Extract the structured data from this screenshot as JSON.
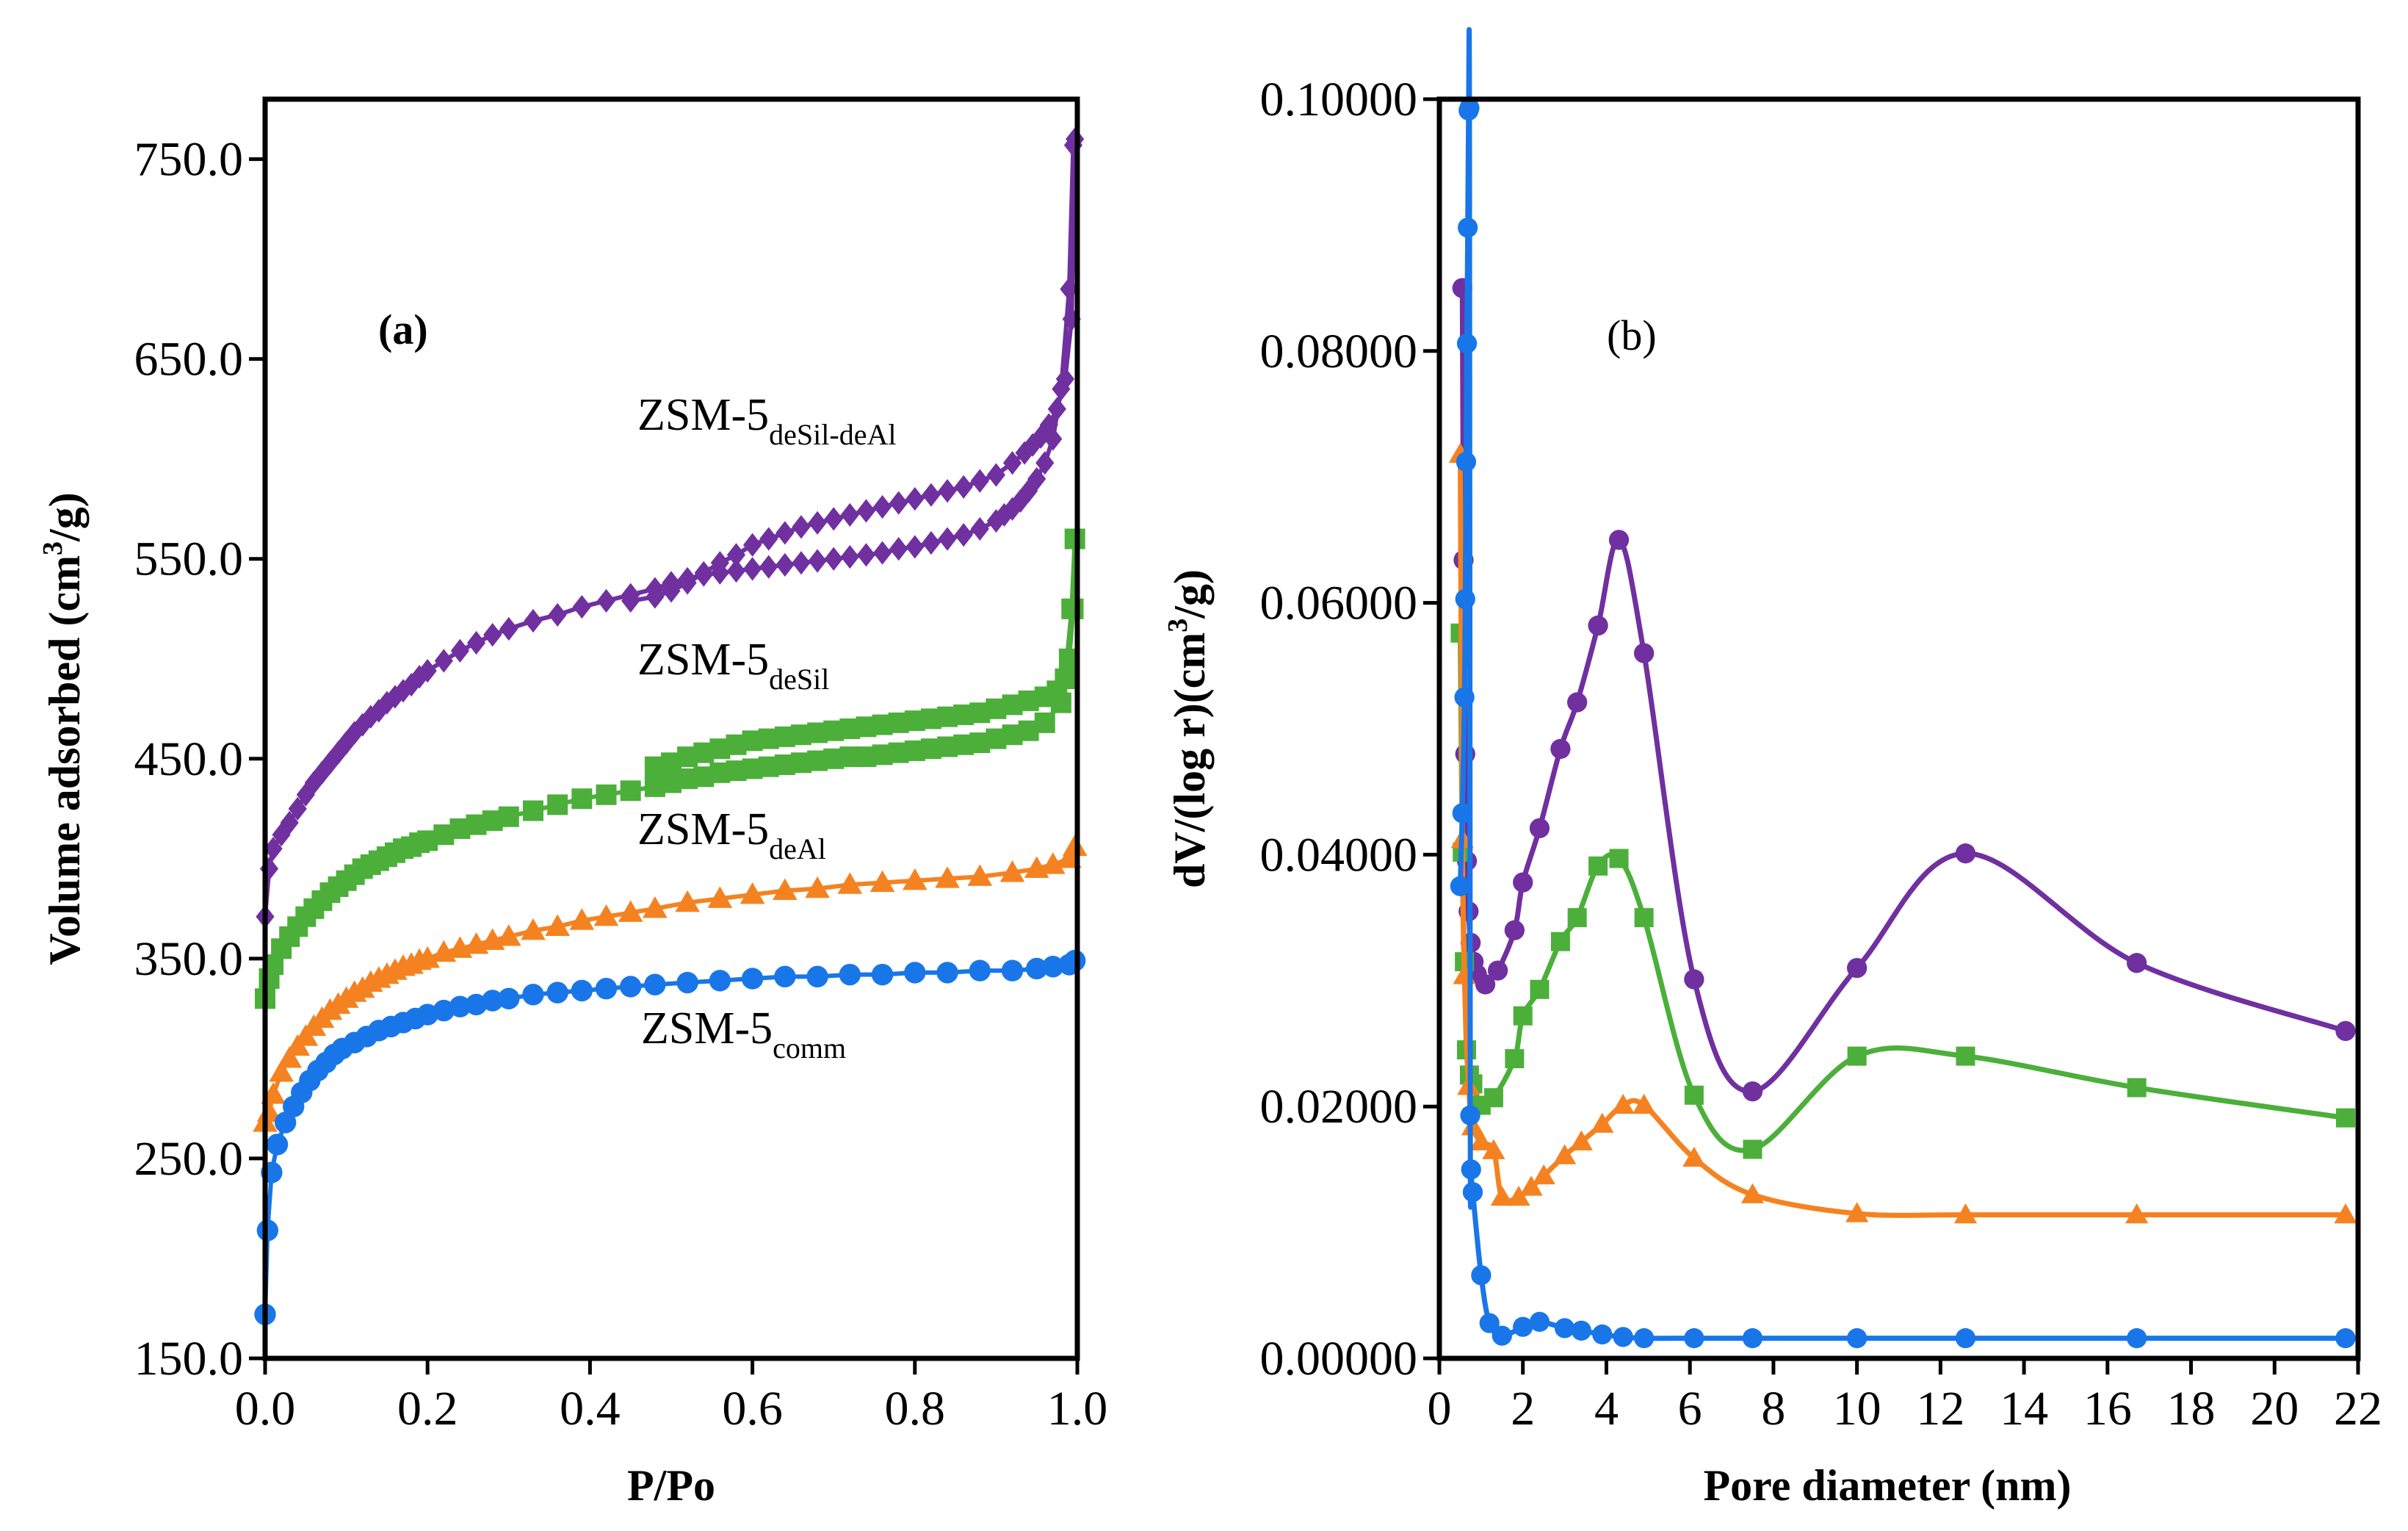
{
  "chart_data": [
    {
      "panel": "a",
      "type": "scatter",
      "title": "",
      "panel_label": "(a)",
      "xlabel": "P/Po",
      "ylabel_main": "Volume adsorbed (cm",
      "ylabel_sup": "3",
      "ylabel_end": "/g)",
      "xlim": [
        0.0,
        1.0
      ],
      "ylim": [
        150.0,
        780.0
      ],
      "xticks": [
        0.0,
        0.2,
        0.4,
        0.6,
        0.8,
        1.0
      ],
      "xtick_labels": [
        "0.0",
        "0.2",
        "0.4",
        "0.6",
        "0.8",
        "1.0"
      ],
      "yticks": [
        150.0,
        250.0,
        350.0,
        450.0,
        550.0,
        650.0,
        750.0
      ],
      "ytick_labels": [
        "150.0",
        "250.0",
        "350.0",
        "450.0",
        "550.0",
        "650.0",
        "750.0"
      ],
      "series": [
        {
          "name": "ZSM-5deSil-deAl",
          "label_base": "ZSM-5",
          "label_sub": "deSil-deAl",
          "color": "#7030A0",
          "marker": "diamond",
          "x": [
            0.0,
            0.005,
            0.01,
            0.02,
            0.03,
            0.04,
            0.05,
            0.06,
            0.07,
            0.08,
            0.09,
            0.1,
            0.11,
            0.12,
            0.13,
            0.14,
            0.15,
            0.16,
            0.17,
            0.18,
            0.19,
            0.2,
            0.22,
            0.24,
            0.26,
            0.28,
            0.3,
            0.33,
            0.36,
            0.39,
            0.42,
            0.45,
            0.48,
            0.5,
            0.52,
            0.54,
            0.56,
            0.58,
            0.6,
            0.62,
            0.64,
            0.66,
            0.68,
            0.7,
            0.72,
            0.74,
            0.76,
            0.78,
            0.8,
            0.82,
            0.84,
            0.86,
            0.88,
            0.9,
            0.91,
            0.92,
            0.93,
            0.94,
            0.95,
            0.96,
            0.97,
            0.98,
            0.99,
            0.995,
            0.997,
            0.993,
            0.985,
            0.975,
            0.965,
            0.955,
            0.945,
            0.935,
            0.92,
            0.9,
            0.88,
            0.86,
            0.84,
            0.82,
            0.8,
            0.78,
            0.76,
            0.74,
            0.72,
            0.7,
            0.68,
            0.66,
            0.64,
            0.62,
            0.6,
            0.58,
            0.56,
            0.54,
            0.52,
            0.5,
            0.48,
            0.45
          ],
          "y": [
            371,
            395,
            405,
            412,
            418,
            425,
            432,
            438,
            443,
            448,
            453,
            458,
            463,
            467,
            471,
            474,
            478,
            481,
            484,
            487,
            491,
            494,
            499,
            504,
            508,
            512,
            515,
            519,
            522,
            526,
            529,
            532,
            535,
            538,
            540,
            542,
            543,
            544,
            545,
            546,
            547,
            548,
            549,
            550,
            551,
            552,
            553,
            555,
            556,
            558,
            560,
            562,
            565,
            569,
            572,
            575,
            579,
            584,
            590,
            598,
            610,
            635,
            685,
            757,
            760,
            670,
            640,
            625,
            617,
            611,
            607,
            603,
            598,
            592,
            589,
            586,
            584,
            582,
            580,
            578,
            576,
            574,
            572,
            570,
            568,
            566,
            563,
            560,
            557,
            552,
            548,
            543,
            538,
            534,
            531,
            529
          ]
        },
        {
          "name": "ZSM-5deSil",
          "label_base": "ZSM-5",
          "label_sub": "deSil",
          "color": "#4CAF3A",
          "marker": "square",
          "x": [
            0.0,
            0.005,
            0.01,
            0.02,
            0.03,
            0.04,
            0.05,
            0.06,
            0.07,
            0.08,
            0.09,
            0.1,
            0.11,
            0.12,
            0.13,
            0.14,
            0.15,
            0.16,
            0.17,
            0.18,
            0.19,
            0.2,
            0.22,
            0.24,
            0.26,
            0.28,
            0.3,
            0.33,
            0.36,
            0.39,
            0.42,
            0.45,
            0.48,
            0.5,
            0.52,
            0.54,
            0.56,
            0.58,
            0.6,
            0.62,
            0.64,
            0.66,
            0.68,
            0.7,
            0.72,
            0.74,
            0.76,
            0.78,
            0.8,
            0.82,
            0.84,
            0.86,
            0.88,
            0.9,
            0.92,
            0.94,
            0.96,
            0.98,
            0.99,
            0.995,
            0.997,
            0.993,
            0.985,
            0.975,
            0.96,
            0.94,
            0.92,
            0.9,
            0.88,
            0.86,
            0.84,
            0.82,
            0.8,
            0.78,
            0.76,
            0.74,
            0.72,
            0.7,
            0.68,
            0.66,
            0.64,
            0.62,
            0.6,
            0.58,
            0.56,
            0.54,
            0.52,
            0.5,
            0.48
          ],
          "y": [
            330,
            340,
            347,
            355,
            361,
            366,
            371,
            375,
            379,
            383,
            386,
            389,
            392,
            395,
            397,
            399,
            401,
            403,
            405,
            406,
            408,
            409,
            412,
            415,
            417,
            419,
            421,
            424,
            427,
            430,
            432,
            434,
            436,
            438,
            440,
            441,
            443,
            444,
            445,
            446,
            447,
            448,
            449,
            450,
            451,
            451,
            452,
            453,
            454,
            455,
            456,
            457,
            458,
            460,
            462,
            464,
            468,
            478,
            500,
            525,
            560,
            525,
            490,
            484,
            481,
            479,
            477,
            475,
            473,
            472,
            471,
            470,
            469,
            468,
            467,
            466,
            465,
            464,
            463,
            462,
            461,
            460,
            459,
            457,
            455,
            453,
            451,
            448,
            446
          ]
        },
        {
          "name": "ZSM-5deAl",
          "label_base": "ZSM-5",
          "label_sub": "deAl",
          "color": "#F58220",
          "marker": "triangle",
          "x": [
            0.0,
            0.005,
            0.01,
            0.02,
            0.03,
            0.04,
            0.05,
            0.06,
            0.07,
            0.08,
            0.09,
            0.1,
            0.11,
            0.12,
            0.13,
            0.14,
            0.15,
            0.16,
            0.17,
            0.18,
            0.19,
            0.2,
            0.22,
            0.24,
            0.26,
            0.28,
            0.3,
            0.33,
            0.36,
            0.39,
            0.42,
            0.45,
            0.48,
            0.52,
            0.56,
            0.6,
            0.64,
            0.68,
            0.72,
            0.76,
            0.8,
            0.84,
            0.88,
            0.92,
            0.95,
            0.97,
            0.99,
            0.997
          ],
          "y": [
            268,
            273,
            282,
            293,
            300,
            306,
            311,
            316,
            320,
            324,
            327,
            330,
            333,
            335,
            338,
            340,
            342,
            344,
            346,
            347,
            349,
            350,
            353,
            355,
            357,
            359,
            361,
            364,
            366,
            369,
            371,
            373,
            375,
            378,
            380,
            382,
            384,
            385,
            387,
            388,
            389,
            390,
            391,
            393,
            395,
            397,
            400,
            406
          ]
        },
        {
          "name": "ZSM-5comm",
          "label_base": "ZSM-5",
          "label_sub": "comm",
          "color": "#1976E8",
          "marker": "circle",
          "x": [
            0.0,
            0.003,
            0.008,
            0.015,
            0.025,
            0.035,
            0.045,
            0.055,
            0.065,
            0.075,
            0.085,
            0.095,
            0.11,
            0.125,
            0.14,
            0.155,
            0.17,
            0.185,
            0.2,
            0.22,
            0.24,
            0.26,
            0.28,
            0.3,
            0.33,
            0.36,
            0.39,
            0.42,
            0.45,
            0.48,
            0.52,
            0.56,
            0.6,
            0.64,
            0.68,
            0.72,
            0.76,
            0.8,
            0.84,
            0.88,
            0.92,
            0.95,
            0.97,
            0.99,
            0.997
          ],
          "y": [
            172,
            214,
            243,
            257,
            268,
            276,
            283,
            289,
            294,
            298,
            302,
            305,
            308,
            311,
            314,
            316,
            318,
            320,
            322,
            324,
            326,
            327,
            329,
            330,
            332,
            333,
            334,
            335,
            336,
            337,
            338,
            339,
            340,
            341,
            341,
            342,
            342,
            343,
            343,
            344,
            344,
            345,
            346,
            347,
            349
          ]
        }
      ]
    },
    {
      "panel": "b",
      "type": "line",
      "title": "",
      "panel_label": "(b)",
      "xlabel": "Pore diameter (nm)",
      "ylabel_main": "dV/(log r)(cm",
      "ylabel_sup": "3",
      "ylabel_end": "/g)",
      "xlim": [
        0,
        22
      ],
      "ylim": [
        0.0,
        0.1
      ],
      "xticks": [
        0,
        2,
        4,
        6,
        8,
        10,
        12,
        14,
        16,
        18,
        20,
        22
      ],
      "xtick_labels": [
        "0",
        "2",
        "4",
        "6",
        "8",
        "10",
        "12",
        "14",
        "16",
        "18",
        "20",
        "22"
      ],
      "yticks": [
        0.0,
        0.02,
        0.04,
        0.06,
        0.08,
        0.1
      ],
      "ytick_labels": [
        "0.00000",
        "0.02000",
        "0.04000",
        "0.06000",
        "0.08000",
        "0.10000"
      ],
      "series": [
        {
          "name": "ZSM-5deSil-deAl",
          "color": "#7030A0",
          "marker": "circle",
          "x": [
            0.55,
            0.58,
            0.62,
            0.66,
            0.7,
            0.75,
            0.82,
            0.9,
            1.1,
            1.4,
            1.8,
            2.0,
            2.4,
            2.9,
            3.3,
            3.8,
            4.3,
            4.9,
            6.1,
            7.5,
            10.0,
            12.6,
            16.7,
            21.7
          ],
          "y": [
            0.085,
            0.0634,
            0.048,
            0.0395,
            0.0355,
            0.033,
            0.0315,
            0.0305,
            0.0297,
            0.0308,
            0.034,
            0.0378,
            0.0421,
            0.0484,
            0.0521,
            0.0582,
            0.065,
            0.056,
            0.0301,
            0.0212,
            0.031,
            0.0401,
            0.0314,
            0.026
          ]
        },
        {
          "name": "ZSM-5deSil",
          "color": "#4CAF3A",
          "marker": "square",
          "x": [
            0.5,
            0.55,
            0.6,
            0.65,
            0.72,
            0.8,
            1.0,
            1.3,
            1.8,
            2.0,
            2.4,
            2.9,
            3.3,
            3.8,
            4.3,
            4.9,
            6.1,
            7.5,
            10.0,
            12.6,
            16.7,
            21.7
          ],
          "y": [
            0.0576,
            0.0402,
            0.0315,
            0.0245,
            0.0225,
            0.0218,
            0.0201,
            0.0207,
            0.0238,
            0.0272,
            0.0293,
            0.0331,
            0.035,
            0.0391,
            0.0397,
            0.035,
            0.0209,
            0.0166,
            0.024,
            0.024,
            0.0215,
            0.0191
          ]
        },
        {
          "name": "ZSM-5deAl",
          "color": "#F58220",
          "marker": "triangle",
          "x": [
            0.5,
            0.55,
            0.6,
            0.7,
            0.8,
            1.0,
            1.3,
            1.5,
            1.9,
            2.2,
            2.5,
            3.0,
            3.4,
            3.9,
            4.4,
            4.9,
            6.1,
            7.5,
            10.0,
            12.6,
            16.7,
            21.7
          ],
          "y": [
            0.0718,
            0.0412,
            0.0304,
            0.0216,
            0.0184,
            0.0172,
            0.0165,
            0.0128,
            0.0128,
            0.0136,
            0.0145,
            0.0161,
            0.0172,
            0.0186,
            0.0201,
            0.0201,
            0.0159,
            0.013,
            0.0115,
            0.0114,
            0.0114,
            0.0114
          ]
        },
        {
          "name": "ZSM-5comm",
          "color": "#1976E8",
          "marker": "circle",
          "x": [
            0.5,
            0.55,
            0.6,
            0.62,
            0.64,
            0.66,
            0.68,
            0.7,
            0.72,
            0.74,
            0.76,
            0.8,
            1.0,
            1.2,
            1.5,
            2.0,
            2.4,
            3.0,
            3.4,
            3.9,
            4.4,
            4.9,
            6.1,
            7.5,
            10.0,
            12.6,
            16.7,
            21.7
          ],
          "y": [
            0.0375,
            0.0433,
            0.0525,
            0.0603,
            0.0712,
            0.0806,
            0.0898,
            0.0991,
            0.0993,
            0.0193,
            0.015,
            0.0132,
            0.0066,
            0.0028,
            0.0018,
            0.0025,
            0.0029,
            0.0024,
            0.0022,
            0.0019,
            0.0017,
            0.0016,
            0.0016,
            0.0016,
            0.0016,
            0.0016,
            0.0016,
            0.0016
          ]
        }
      ]
    }
  ]
}
